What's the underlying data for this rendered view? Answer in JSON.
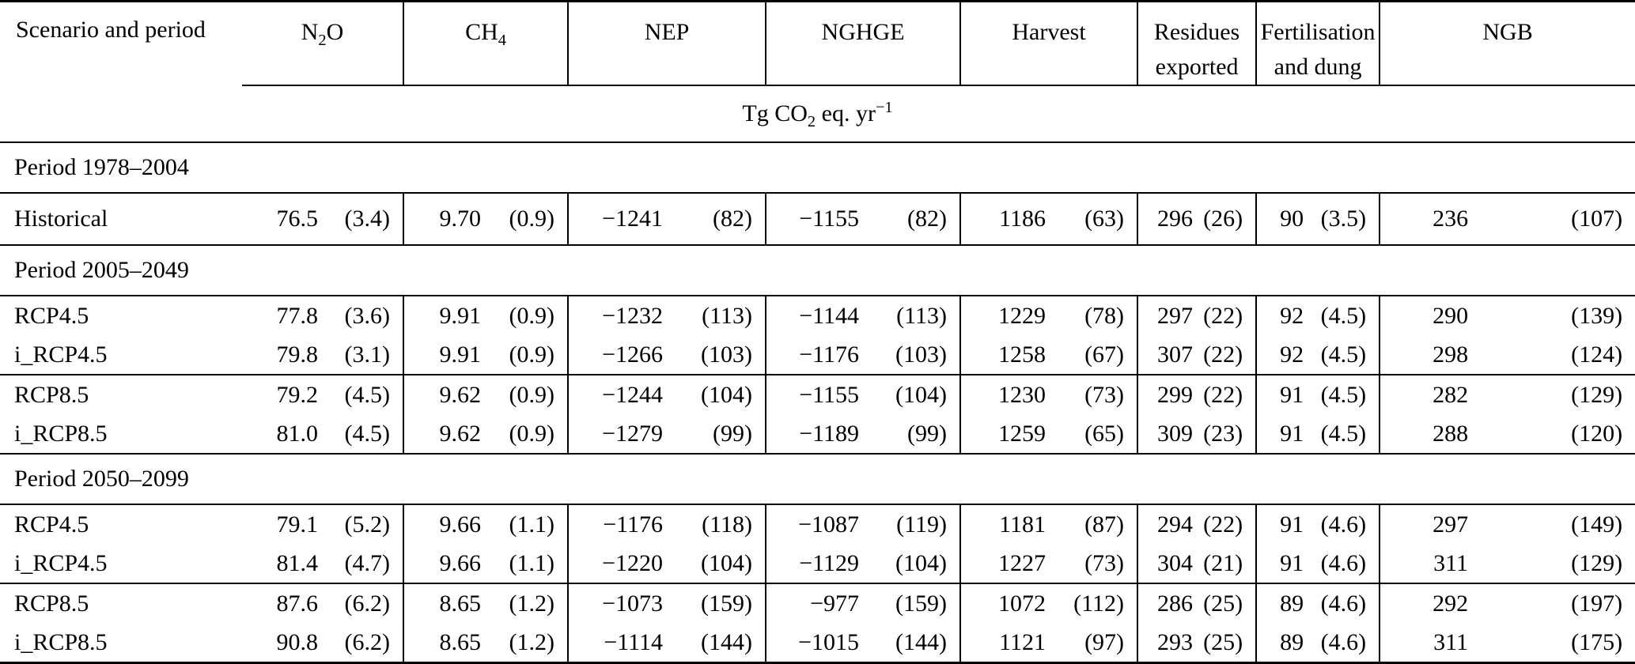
{
  "table": {
    "corner_header": "Scenario and period",
    "groups": [
      {
        "line1_pre": "N",
        "line1_sub": "2",
        "line1_post": "O",
        "line2": ""
      },
      {
        "line1_pre": "CH",
        "line1_sub": "4",
        "line1_post": "",
        "line2": ""
      },
      {
        "line1_pre": "NEP",
        "line1_sub": "",
        "line1_post": "",
        "line2": ""
      },
      {
        "line1_pre": "NGHGE",
        "line1_sub": "",
        "line1_post": "",
        "line2": ""
      },
      {
        "line1_pre": "Harvest",
        "line1_sub": "",
        "line1_post": "",
        "line2": ""
      },
      {
        "line1_pre": "Residues",
        "line1_sub": "",
        "line1_post": "",
        "line2": "exported"
      },
      {
        "line1_pre": "Fertilisation",
        "line1_sub": "",
        "line1_post": "",
        "line2": "and dung"
      },
      {
        "line1_pre": "NGB",
        "line1_sub": "",
        "line1_post": "",
        "line2": ""
      }
    ],
    "units": {
      "pre": "Tg CO",
      "sub": "2",
      "mid": " eq. yr",
      "sup": "−1"
    },
    "rows": [
      {
        "type": "section",
        "label": "Period 1978–2004",
        "rule_below": true
      },
      {
        "type": "data",
        "label": "Historical",
        "rule_below": true,
        "values": [
          "76.5",
          "(3.4)",
          "9.70",
          "(0.9)",
          "−1241",
          "(82)",
          "−1155",
          "(82)",
          "1186",
          "(63)",
          "296",
          "(26)",
          "90",
          "(3.5)",
          "236",
          "(107)"
        ]
      },
      {
        "type": "section",
        "label": "Period 2005–2049",
        "rule_below": true
      },
      {
        "type": "data",
        "label": "RCP4.5",
        "rule_below": false,
        "values": [
          "77.8",
          "(3.6)",
          "9.91",
          "(0.9)",
          "−1232",
          "(113)",
          "−1144",
          "(113)",
          "1229",
          "(78)",
          "297",
          "(22)",
          "92",
          "(4.5)",
          "290",
          "(139)"
        ]
      },
      {
        "type": "data",
        "label": "i_RCP4.5",
        "rule_below": true,
        "values": [
          "79.8",
          "(3.1)",
          "9.91",
          "(0.9)",
          "−1266",
          "(103)",
          "−1176",
          "(103)",
          "1258",
          "(67)",
          "307",
          "(22)",
          "92",
          "(4.5)",
          "298",
          "(124)"
        ]
      },
      {
        "type": "data",
        "label": "RCP8.5",
        "rule_below": false,
        "values": [
          "79.2",
          "(4.5)",
          "9.62",
          "(0.9)",
          "−1244",
          "(104)",
          "−1155",
          "(104)",
          "1230",
          "(73)",
          "299",
          "(22)",
          "91",
          "(4.5)",
          "282",
          "(129)"
        ]
      },
      {
        "type": "data",
        "label": "i_RCP8.5",
        "rule_below": true,
        "values": [
          "81.0",
          "(4.5)",
          "9.62",
          "(0.9)",
          "−1279",
          "(99)",
          "−1189",
          "(99)",
          "1259",
          "(65)",
          "309",
          "(23)",
          "91",
          "(4.5)",
          "288",
          "(120)"
        ]
      },
      {
        "type": "section",
        "label": "Period 2050–2099",
        "rule_below": true
      },
      {
        "type": "data",
        "label": "RCP4.5",
        "rule_below": false,
        "values": [
          "79.1",
          "(5.2)",
          "9.66",
          "(1.1)",
          "−1176",
          "(118)",
          "−1087",
          "(119)",
          "1181",
          "(87)",
          "294",
          "(22)",
          "91",
          "(4.6)",
          "297",
          "(149)"
        ]
      },
      {
        "type": "data",
        "label": "i_RCP4.5",
        "rule_below": true,
        "values": [
          "81.4",
          "(4.7)",
          "9.66",
          "(1.1)",
          "−1220",
          "(104)",
          "−1129",
          "(104)",
          "1227",
          "(73)",
          "304",
          "(21)",
          "91",
          "(4.6)",
          "311",
          "(129)"
        ]
      },
      {
        "type": "data",
        "label": "RCP8.5",
        "rule_below": false,
        "values": [
          "87.6",
          "(6.2)",
          "8.65",
          "(1.2)",
          "−1073",
          "(159)",
          "−977",
          "(159)",
          "1072",
          "(112)",
          "286",
          "(25)",
          "89",
          "(4.6)",
          "292",
          "(197)"
        ]
      },
      {
        "type": "data",
        "label": "i_RCP8.5",
        "rule_below": true,
        "bottom": true,
        "values": [
          "90.8",
          "(6.2)",
          "8.65",
          "(1.2)",
          "−1114",
          "(144)",
          "−1015",
          "(144)",
          "1121",
          "(97)",
          "293",
          "(25)",
          "89",
          "(4.6)",
          "311",
          "(175)"
        ]
      }
    ]
  }
}
